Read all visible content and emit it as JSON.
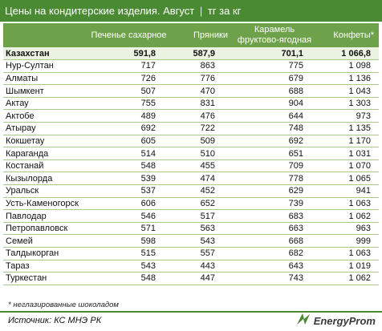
{
  "header": {
    "title": "Цены на кондитерские изделия. Август",
    "separator": "|",
    "unit": "тг за кг"
  },
  "table": {
    "columns": [
      "",
      "Печенье сахарное",
      "Пряники",
      "Карамель фруктово-ягодная",
      "Конфеты*"
    ],
    "rows": [
      {
        "name": "Казахстан",
        "values": [
          "591,8",
          "587,9",
          "701,1",
          "1 066,8"
        ],
        "total": true
      },
      {
        "name": "Нур-Султан",
        "values": [
          "717",
          "863",
          "775",
          "1 098"
        ]
      },
      {
        "name": "Алматы",
        "values": [
          "726",
          "776",
          "679",
          "1 136"
        ]
      },
      {
        "name": "Шымкент",
        "values": [
          "507",
          "470",
          "688",
          "1 043"
        ]
      },
      {
        "name": "Актау",
        "values": [
          "755",
          "831",
          "904",
          "1 303"
        ]
      },
      {
        "name": "Актобе",
        "values": [
          "489",
          "476",
          "644",
          "973"
        ]
      },
      {
        "name": "Атырау",
        "values": [
          "692",
          "722",
          "748",
          "1 135"
        ]
      },
      {
        "name": "Кокшетау",
        "values": [
          "605",
          "509",
          "692",
          "1 170"
        ]
      },
      {
        "name": "Караганда",
        "values": [
          "514",
          "510",
          "651",
          "1 031"
        ]
      },
      {
        "name": "Костанай",
        "values": [
          "548",
          "455",
          "709",
          "1 070"
        ]
      },
      {
        "name": "Кызылорда",
        "values": [
          "539",
          "474",
          "778",
          "1 065"
        ]
      },
      {
        "name": "Уральск",
        "values": [
          "537",
          "452",
          "629",
          "941"
        ]
      },
      {
        "name": "Усть-Каменогорск",
        "values": [
          "606",
          "652",
          "739",
          "1 063"
        ]
      },
      {
        "name": "Павлодар",
        "values": [
          "546",
          "517",
          "683",
          "1 062"
        ]
      },
      {
        "name": "Петропавловск",
        "values": [
          "571",
          "563",
          "663",
          "963"
        ]
      },
      {
        "name": "Семей",
        "values": [
          "598",
          "543",
          "668",
          "999"
        ]
      },
      {
        "name": "Талдыкорган",
        "values": [
          "515",
          "557",
          "682",
          "1 063"
        ]
      },
      {
        "name": "Тараз",
        "values": [
          "543",
          "443",
          "643",
          "1 019"
        ]
      },
      {
        "name": "Туркестан",
        "values": [
          "548",
          "447",
          "743",
          "1 062"
        ]
      }
    ]
  },
  "footnote": "* неглазированные шоколадом",
  "source": "Источник: КС МНЭ РК",
  "logo": {
    "text": "EnergyProm",
    "icon": "energyprom-logo-icon",
    "color": "#4a8a32"
  }
}
